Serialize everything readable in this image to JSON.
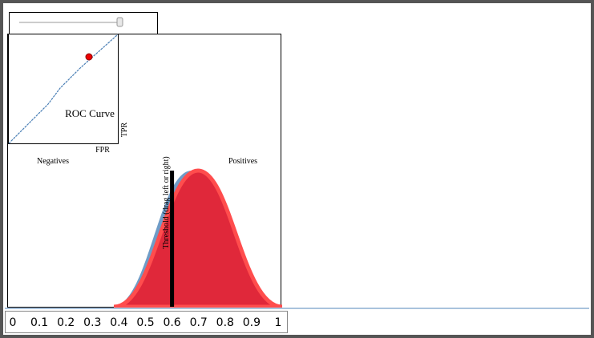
{
  "roc": {
    "title": "ROC Curve",
    "x_label": "FPR",
    "y_label": "TPR"
  },
  "distribution": {
    "negatives_label": "Negatives",
    "positives_label": "Positives",
    "threshold_label": "Threshold (drag left or right)",
    "threshold": 0.6
  },
  "axis": {
    "ticks": [
      0,
      0.1,
      0.2,
      0.3,
      0.4,
      0.5,
      0.6,
      0.7,
      0.8,
      0.9,
      1
    ]
  }
}
